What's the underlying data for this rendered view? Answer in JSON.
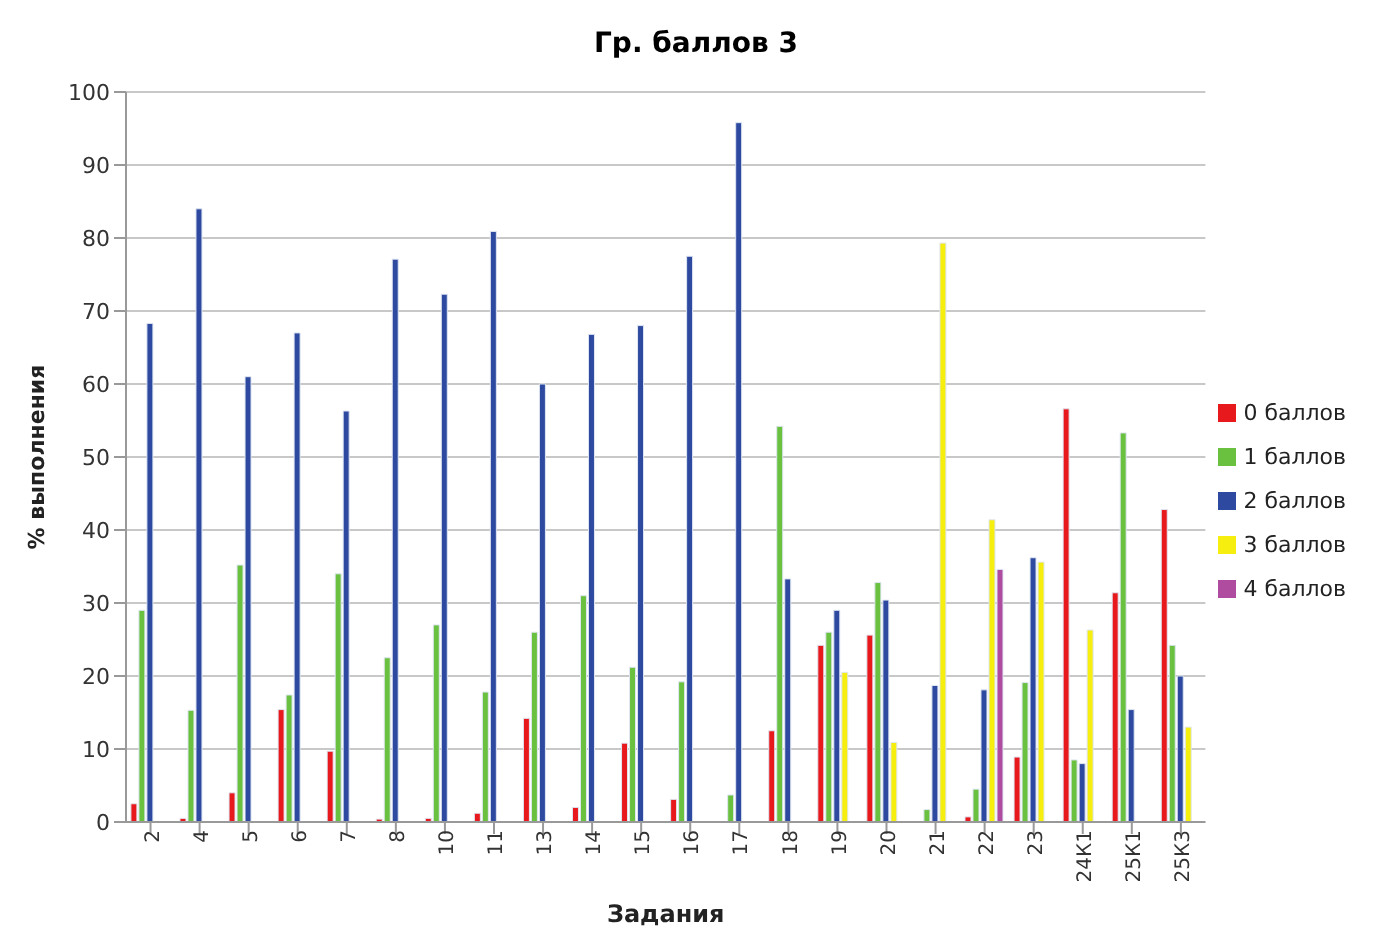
{
  "chart_data": {
    "type": "bar",
    "title": "Гр. баллов 3",
    "xlabel": "Задания",
    "ylabel": "% выполнения",
    "categories": [
      "2",
      "4",
      "5",
      "6",
      "7",
      "8",
      "10",
      "11",
      "13",
      "14",
      "15",
      "16",
      "17",
      "18",
      "19",
      "20",
      "21",
      "22",
      "23",
      "24К1",
      "25К1",
      "25К3"
    ],
    "series": [
      {
        "name": "0 баллов",
        "color": "#e8191c",
        "values": [
          2.5,
          0.5,
          4,
          15.4,
          9.7,
          0.4,
          0.5,
          1.2,
          14.2,
          2,
          10.8,
          3.1,
          null,
          12.5,
          24.2,
          25.6,
          null,
          0.7,
          8.9,
          56.6,
          31.4,
          42.8
        ]
      },
      {
        "name": "1 баллов",
        "color": "#6ac13f",
        "values": [
          29,
          15.3,
          35.2,
          17.4,
          34,
          22.5,
          27,
          17.8,
          26,
          31,
          21.2,
          19.2,
          3.7,
          54.2,
          26,
          32.8,
          1.7,
          4.5,
          19.1,
          8.5,
          53.3,
          24.2
        ]
      },
      {
        "name": "2 баллов",
        "color": "#2e4aa0",
        "values": [
          68.3,
          84,
          61,
          67,
          56.3,
          77.1,
          72.3,
          80.9,
          60,
          66.8,
          68,
          77.5,
          95.8,
          33.3,
          29,
          30.4,
          18.7,
          18.1,
          36.2,
          8,
          15.4,
          20
        ]
      },
      {
        "name": "3 баллов",
        "color": "#f5ee0f",
        "values": [
          null,
          null,
          null,
          null,
          null,
          null,
          null,
          null,
          null,
          null,
          null,
          null,
          null,
          null,
          20.5,
          10.9,
          79.3,
          41.4,
          35.6,
          26.3,
          null,
          13
        ]
      },
      {
        "name": "4 баллов",
        "color": "#b04ca0",
        "values": [
          null,
          null,
          null,
          null,
          null,
          null,
          null,
          null,
          null,
          null,
          null,
          null,
          null,
          null,
          null,
          null,
          null,
          34.6,
          null,
          null,
          null,
          null
        ]
      }
    ],
    "ylim": [
      0,
      100
    ],
    "yticks": [
      0,
      10,
      20,
      30,
      40,
      50,
      60,
      70,
      80,
      90,
      100
    ],
    "grid": "y",
    "legend": "right"
  }
}
